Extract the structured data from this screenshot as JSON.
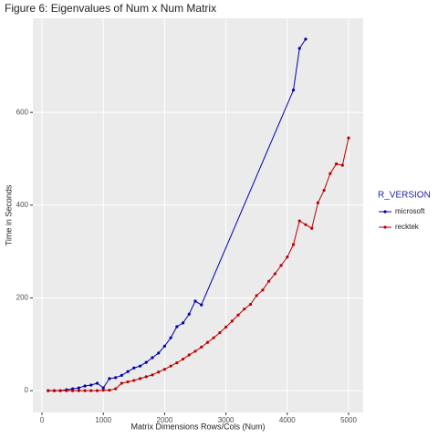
{
  "chart_data": {
    "type": "line",
    "title": "Figure 6: Eigenvalues of Num x Num Matrix",
    "x_label": "Matrix Dimensions Rows/Cols (Num)",
    "y_label": "Time in Seconds",
    "legend_title": "R_VERSION",
    "legend_position": "right",
    "grid": true,
    "xlim": [
      -149,
      5238
    ],
    "ylim": [
      -47,
      803
    ],
    "xticks": [
      0,
      1000,
      2000,
      3000,
      4000,
      5000
    ],
    "yticks": [
      0,
      200,
      400,
      600
    ],
    "series": [
      {
        "name": "microsoft",
        "color": "#0000aa",
        "x": [
          100,
          200,
          300,
          400,
          500,
          600,
          700,
          800,
          900,
          1000,
          1100,
          1200,
          1300,
          1400,
          1500,
          1600,
          1700,
          1800,
          1900,
          2000,
          2100,
          2200,
          2300,
          2400,
          2500,
          2600,
          4100,
          4200,
          4300
        ],
        "values": [
          0,
          0,
          0,
          2,
          4,
          6,
          10,
          12,
          16,
          6,
          26,
          28,
          33,
          41,
          49,
          53,
          61,
          71,
          81,
          96,
          114,
          138,
          146,
          165,
          193,
          185,
          648,
          738,
          758
        ]
      },
      {
        "name": "recktek",
        "color": "#bb0000",
        "x": [
          100,
          200,
          300,
          400,
          500,
          600,
          700,
          800,
          900,
          1000,
          1100,
          1200,
          1300,
          1400,
          1500,
          1600,
          1700,
          1800,
          1900,
          2000,
          2100,
          2200,
          2300,
          2400,
          2500,
          2600,
          2700,
          2800,
          2900,
          3000,
          3100,
          3200,
          3300,
          3400,
          3500,
          3600,
          3700,
          3800,
          3900,
          4000,
          4100,
          4200,
          4300,
          4400,
          4500,
          4600,
          4700,
          4800,
          4900,
          5000
        ],
        "values": [
          0,
          0,
          0,
          0,
          0,
          0,
          0,
          0,
          0,
          1,
          1,
          4,
          16,
          19,
          22,
          26,
          30,
          34,
          40,
          46,
          53,
          60,
          68,
          77,
          85,
          94,
          104,
          114,
          125,
          137,
          150,
          163,
          176,
          186,
          205,
          217,
          236,
          252,
          270,
          288,
          315,
          366,
          358,
          350,
          405,
          432,
          468,
          489,
          486,
          545
        ]
      }
    ]
  }
}
